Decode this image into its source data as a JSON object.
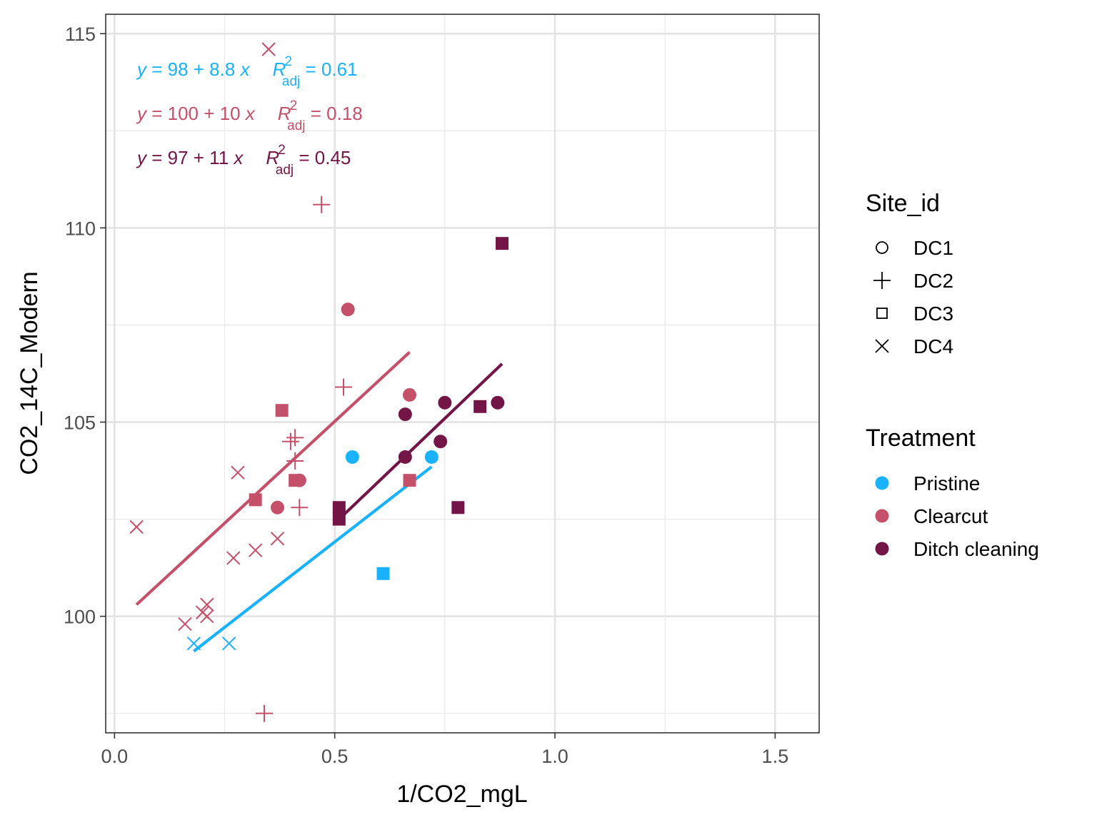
{
  "chart_data": {
    "type": "scatter",
    "xlabel": "1/CO2_mgL",
    "ylabel": "CO2_14C_Modern",
    "xlim": [
      -0.02,
      1.6
    ],
    "ylim": [
      97.0,
      115.5
    ],
    "x_ticks": [
      0.0,
      0.5,
      1.0,
      1.5
    ],
    "x_tick_labels": [
      "0.0",
      "0.5",
      "1.0",
      "1.5"
    ],
    "y_ticks": [
      100,
      105,
      110,
      115
    ],
    "y_tick_labels": [
      "100",
      "105",
      "110",
      "115"
    ],
    "grid": true,
    "legend_position": "right",
    "legend_shape": {
      "title": "Site_id",
      "items": [
        {
          "label": "DC1",
          "shape": "circle"
        },
        {
          "label": "DC2",
          "shape": "plus"
        },
        {
          "label": "DC3",
          "shape": "square"
        },
        {
          "label": "DC4",
          "shape": "cross"
        }
      ]
    },
    "legend_color": {
      "title": "Treatment",
      "items": [
        {
          "label": "Pristine",
          "color": "#1AB2FF"
        },
        {
          "label": "Clearcut",
          "color": "#C4506A"
        },
        {
          "label": "Ditch cleaning",
          "color": "#731547"
        }
      ]
    },
    "series": [
      {
        "name": "Pristine",
        "color": "#1AB2FF",
        "points": [
          {
            "x": 0.54,
            "y": 104.1,
            "site": "DC1"
          },
          {
            "x": 0.72,
            "y": 104.1,
            "site": "DC1"
          },
          {
            "x": 0.61,
            "y": 101.1,
            "site": "DC3"
          },
          {
            "x": 0.18,
            "y": 99.3,
            "site": "DC4"
          },
          {
            "x": 0.26,
            "y": 99.3,
            "site": "DC4"
          }
        ],
        "fit": {
          "x": [
            0.18,
            0.72
          ],
          "y": [
            99.1,
            103.85
          ]
        },
        "equation": {
          "lhs": "y",
          "eq1": " = 98 + 8.8 ",
          "xvar": "x",
          "r": "R",
          "sup": "2",
          "sub": "adj",
          "eq2": " = 0.61"
        }
      },
      {
        "name": "Clearcut",
        "color": "#C4506A",
        "points": [
          {
            "x": 0.53,
            "y": 107.9,
            "site": "DC1"
          },
          {
            "x": 0.67,
            "y": 105.7,
            "site": "DC1"
          },
          {
            "x": 0.42,
            "y": 103.5,
            "site": "DC1"
          },
          {
            "x": 0.37,
            "y": 102.8,
            "site": "DC1"
          },
          {
            "x": 0.47,
            "y": 110.6,
            "site": "DC2"
          },
          {
            "x": 0.52,
            "y": 105.9,
            "site": "DC2"
          },
          {
            "x": 0.4,
            "y": 104.5,
            "site": "DC2"
          },
          {
            "x": 0.41,
            "y": 104.6,
            "site": "DC2"
          },
          {
            "x": 0.41,
            "y": 104.0,
            "site": "DC2"
          },
          {
            "x": 0.42,
            "y": 102.8,
            "site": "DC2"
          },
          {
            "x": 0.34,
            "y": 97.5,
            "site": "DC2"
          },
          {
            "x": 0.38,
            "y": 105.3,
            "site": "DC3"
          },
          {
            "x": 0.41,
            "y": 103.5,
            "site": "DC3"
          },
          {
            "x": 0.32,
            "y": 103.0,
            "site": "DC3"
          },
          {
            "x": 0.67,
            "y": 103.5,
            "site": "DC3"
          },
          {
            "x": 0.35,
            "y": 114.6,
            "site": "DC4"
          },
          {
            "x": 0.28,
            "y": 103.7,
            "site": "DC4"
          },
          {
            "x": 0.05,
            "y": 102.3,
            "site": "DC4"
          },
          {
            "x": 0.37,
            "y": 102.0,
            "site": "DC4"
          },
          {
            "x": 0.32,
            "y": 101.7,
            "site": "DC4"
          },
          {
            "x": 0.27,
            "y": 101.5,
            "site": "DC4"
          },
          {
            "x": 0.21,
            "y": 100.3,
            "site": "DC4"
          },
          {
            "x": 0.2,
            "y": 100.1,
            "site": "DC4"
          },
          {
            "x": 0.21,
            "y": 100.0,
            "site": "DC4"
          },
          {
            "x": 0.16,
            "y": 99.8,
            "site": "DC4"
          }
        ],
        "fit": {
          "x": [
            0.05,
            0.67
          ],
          "y": [
            100.3,
            106.8
          ]
        },
        "equation": {
          "lhs": "y",
          "eq1": " = 100 + 10 ",
          "xvar": "x",
          "r": "R",
          "sup": "2",
          "sub": "adj",
          "eq2": " = 0.18"
        }
      },
      {
        "name": "Ditch cleaning",
        "color": "#731547",
        "points": [
          {
            "x": 0.66,
            "y": 105.2,
            "site": "DC1"
          },
          {
            "x": 0.75,
            "y": 105.5,
            "site": "DC1"
          },
          {
            "x": 0.87,
            "y": 105.5,
            "site": "DC1"
          },
          {
            "x": 0.74,
            "y": 104.5,
            "site": "DC1"
          },
          {
            "x": 0.66,
            "y": 104.1,
            "site": "DC1"
          },
          {
            "x": 0.88,
            "y": 109.6,
            "site": "DC3"
          },
          {
            "x": 0.83,
            "y": 105.4,
            "site": "DC3"
          },
          {
            "x": 0.51,
            "y": 102.8,
            "site": "DC3"
          },
          {
            "x": 0.51,
            "y": 102.5,
            "site": "DC3"
          },
          {
            "x": 0.78,
            "y": 102.8,
            "site": "DC3"
          }
        ],
        "fit": {
          "x": [
            0.51,
            0.88
          ],
          "y": [
            102.5,
            106.5
          ]
        },
        "equation": {
          "lhs": "y",
          "eq1": " = 97 + 11 ",
          "xvar": "x",
          "r": "R",
          "sup": "2",
          "sub": "adj",
          "eq2": " = 0.45"
        }
      }
    ]
  }
}
